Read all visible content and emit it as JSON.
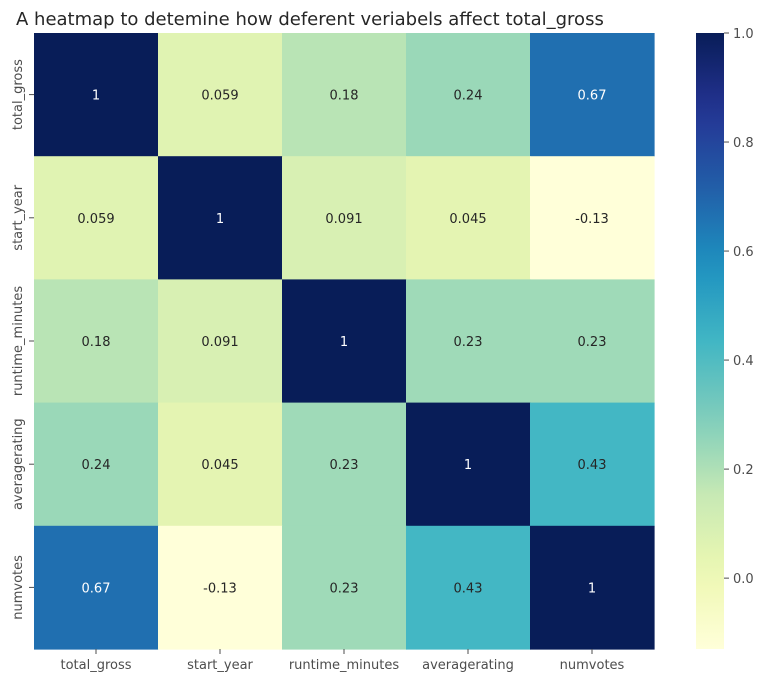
{
  "chart_data": {
    "type": "heatmap",
    "title": "A heatmap to detemine how deferent veriabels affect total_gross",
    "xlabel": "",
    "ylabel": "",
    "x_categories": [
      "total_gross",
      "start_year",
      "runtime_minutes",
      "averagerating",
      "numvotes"
    ],
    "y_categories": [
      "total_gross",
      "start_year",
      "runtime_minutes",
      "averagerating",
      "numvotes"
    ],
    "values": [
      [
        1,
        0.059,
        0.18,
        0.24,
        0.67
      ],
      [
        0.059,
        1,
        0.091,
        0.045,
        -0.13
      ],
      [
        0.18,
        0.091,
        1,
        0.23,
        0.23
      ],
      [
        0.24,
        0.045,
        0.23,
        1,
        0.43
      ],
      [
        0.67,
        -0.13,
        0.23,
        0.43,
        1
      ]
    ],
    "annotations": [
      [
        "1",
        "0.059",
        "0.18",
        "0.24",
        "0.67"
      ],
      [
        "0.059",
        "1",
        "0.091",
        "0.045",
        "-0.13"
      ],
      [
        "0.18",
        "0.091",
        "1",
        "0.23",
        "0.23"
      ],
      [
        "0.24",
        "0.045",
        "0.23",
        "1",
        "0.43"
      ],
      [
        "0.67",
        "-0.13",
        "0.23",
        "0.43",
        "1"
      ]
    ],
    "colormap": "YlGnBu",
    "vmin": -0.13,
    "vmax": 1,
    "colorbar_ticks": [
      0.0,
      0.2,
      0.4,
      0.6,
      0.8,
      1.0
    ],
    "colorbar_tick_labels": [
      "0.0",
      "0.2",
      "0.4",
      "0.6",
      "0.8",
      "1.0"
    ]
  }
}
